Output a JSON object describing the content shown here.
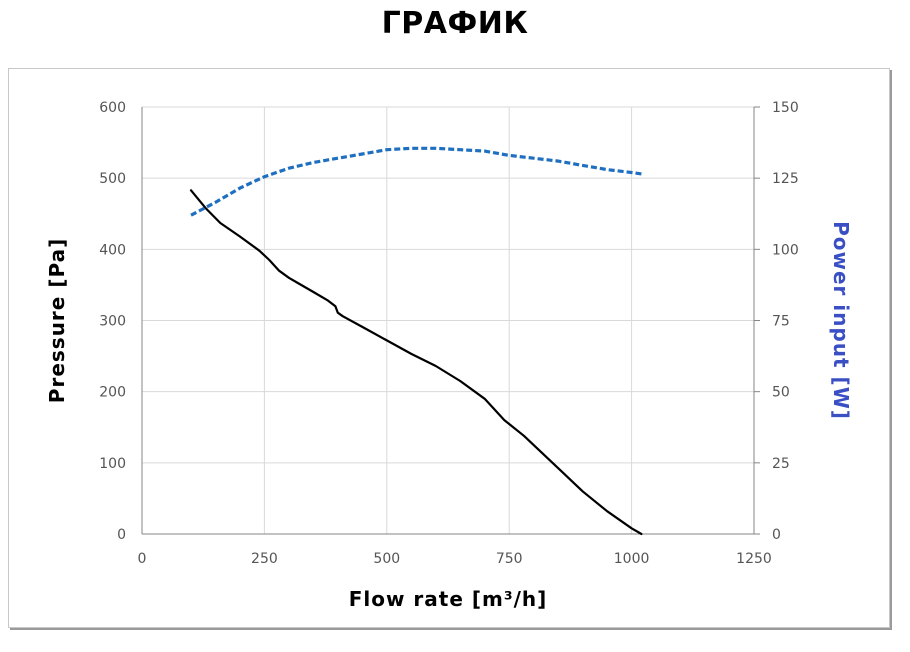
{
  "header": {
    "title": "ГРАФИК"
  },
  "chart_data": {
    "type": "line",
    "xlabel": "Flow rate [m³/h]",
    "ylabel": "Pressure [Pa]",
    "y2label": "Power input [W]",
    "xlim": [
      0,
      1250
    ],
    "ylim": [
      0,
      600
    ],
    "y2lim": [
      0,
      150
    ],
    "x_ticks": [
      "0",
      "250",
      "500",
      "750",
      "1000",
      "1250"
    ],
    "y_ticks": [
      "0",
      "100",
      "200",
      "300",
      "400",
      "500",
      "600"
    ],
    "y2_ticks": [
      "0",
      "25",
      "50",
      "75",
      "100",
      "125",
      "150"
    ],
    "grid": true,
    "colors": {
      "pressure": "#000000",
      "power": "#1f6fc0",
      "y2label": "#3b4fc4"
    },
    "series": [
      {
        "axis": "left",
        "style": "solid",
        "x": [
          100,
          130,
          160,
          200,
          240,
          260,
          280,
          300,
          320,
          350,
          380,
          395,
          400,
          410,
          450,
          500,
          550,
          600,
          650,
          700,
          740,
          780,
          820,
          860,
          900,
          950,
          1000,
          1020
        ],
        "y": [
          483,
          458,
          437,
          418,
          398,
          385,
          370,
          360,
          352,
          340,
          328,
          320,
          311,
          306,
          291,
          272,
          253,
          236,
          215,
          190,
          160,
          138,
          112,
          86,
          60,
          32,
          8,
          0
        ]
      },
      {
        "axis": "right",
        "style": "dashed",
        "x": [
          100,
          150,
          200,
          250,
          300,
          350,
          400,
          450,
          500,
          550,
          600,
          650,
          700,
          750,
          800,
          850,
          900,
          950,
          1000,
          1020
        ],
        "y": [
          112,
          116.5,
          121.5,
          125.5,
          128.5,
          130.5,
          132,
          133.5,
          135,
          135.5,
          135.5,
          135,
          134.5,
          133,
          132,
          131,
          129.5,
          128,
          127,
          126.5
        ]
      }
    ]
  }
}
